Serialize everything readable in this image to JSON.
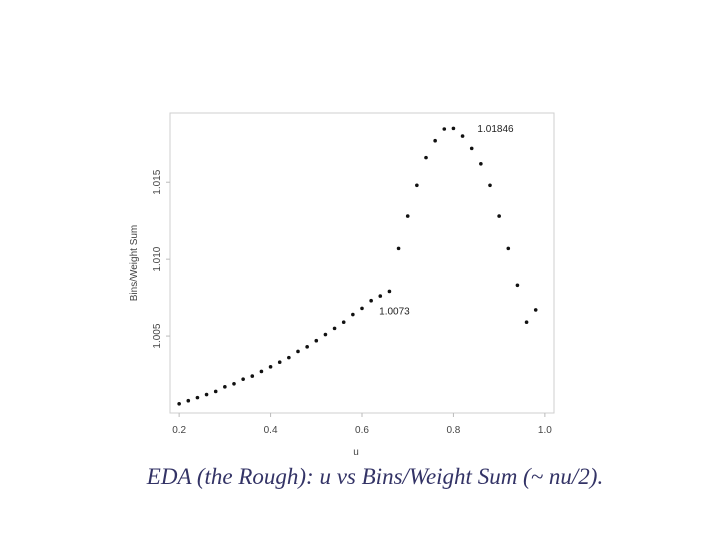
{
  "slide": {
    "caption": "EDA (the Rough): u vs Bins/Weight Sum (~ nu/2)."
  },
  "chart_data": {
    "type": "scatter",
    "xlabel": "u",
    "ylabel": "Bins/Weight Sum",
    "xlim": [
      0.18,
      1.02
    ],
    "ylim": [
      1.0,
      1.0195
    ],
    "x_ticks": [
      0.2,
      0.4,
      0.6,
      0.8,
      1.0
    ],
    "x_tick_labels": [
      "0.2",
      "0.4",
      "0.6",
      "0.8",
      "1.0"
    ],
    "y_ticks": [
      1.005,
      1.01,
      1.015
    ],
    "y_tick_labels": [
      "1.005",
      "1.010",
      "1.015"
    ],
    "grid": false,
    "point_color": "#111111",
    "x": [
      0.2,
      0.22,
      0.24,
      0.26,
      0.28,
      0.3,
      0.32,
      0.34,
      0.36,
      0.38,
      0.4,
      0.42,
      0.44,
      0.46,
      0.48,
      0.5,
      0.52,
      0.54,
      0.56,
      0.58,
      0.6,
      0.62,
      0.64,
      0.66,
      0.68,
      0.7,
      0.72,
      0.74,
      0.76,
      0.78,
      0.8,
      0.82,
      0.84,
      0.86,
      0.88,
      0.9,
      0.92,
      0.94,
      0.96,
      0.98
    ],
    "y": [
      1.0006,
      1.0008,
      1.001,
      1.0012,
      1.0014,
      1.0017,
      1.0019,
      1.0022,
      1.0024,
      1.0027,
      1.003,
      1.0033,
      1.0036,
      1.004,
      1.0043,
      1.0047,
      1.0051,
      1.0055,
      1.0059,
      1.0064,
      1.0068,
      1.0073,
      1.0076,
      1.0079,
      1.0107,
      1.0128,
      1.0148,
      1.0166,
      1.0177,
      1.01846,
      1.0185,
      1.018,
      1.0172,
      1.0162,
      1.0148,
      1.0128,
      1.0107,
      1.0083,
      1.0059,
      1.0067
    ],
    "annotations": [
      {
        "text": "1.01846",
        "x": 0.8,
        "y": 1.01846
      },
      {
        "text": "1.0073",
        "x": 0.62,
        "y": 1.0073
      }
    ]
  }
}
